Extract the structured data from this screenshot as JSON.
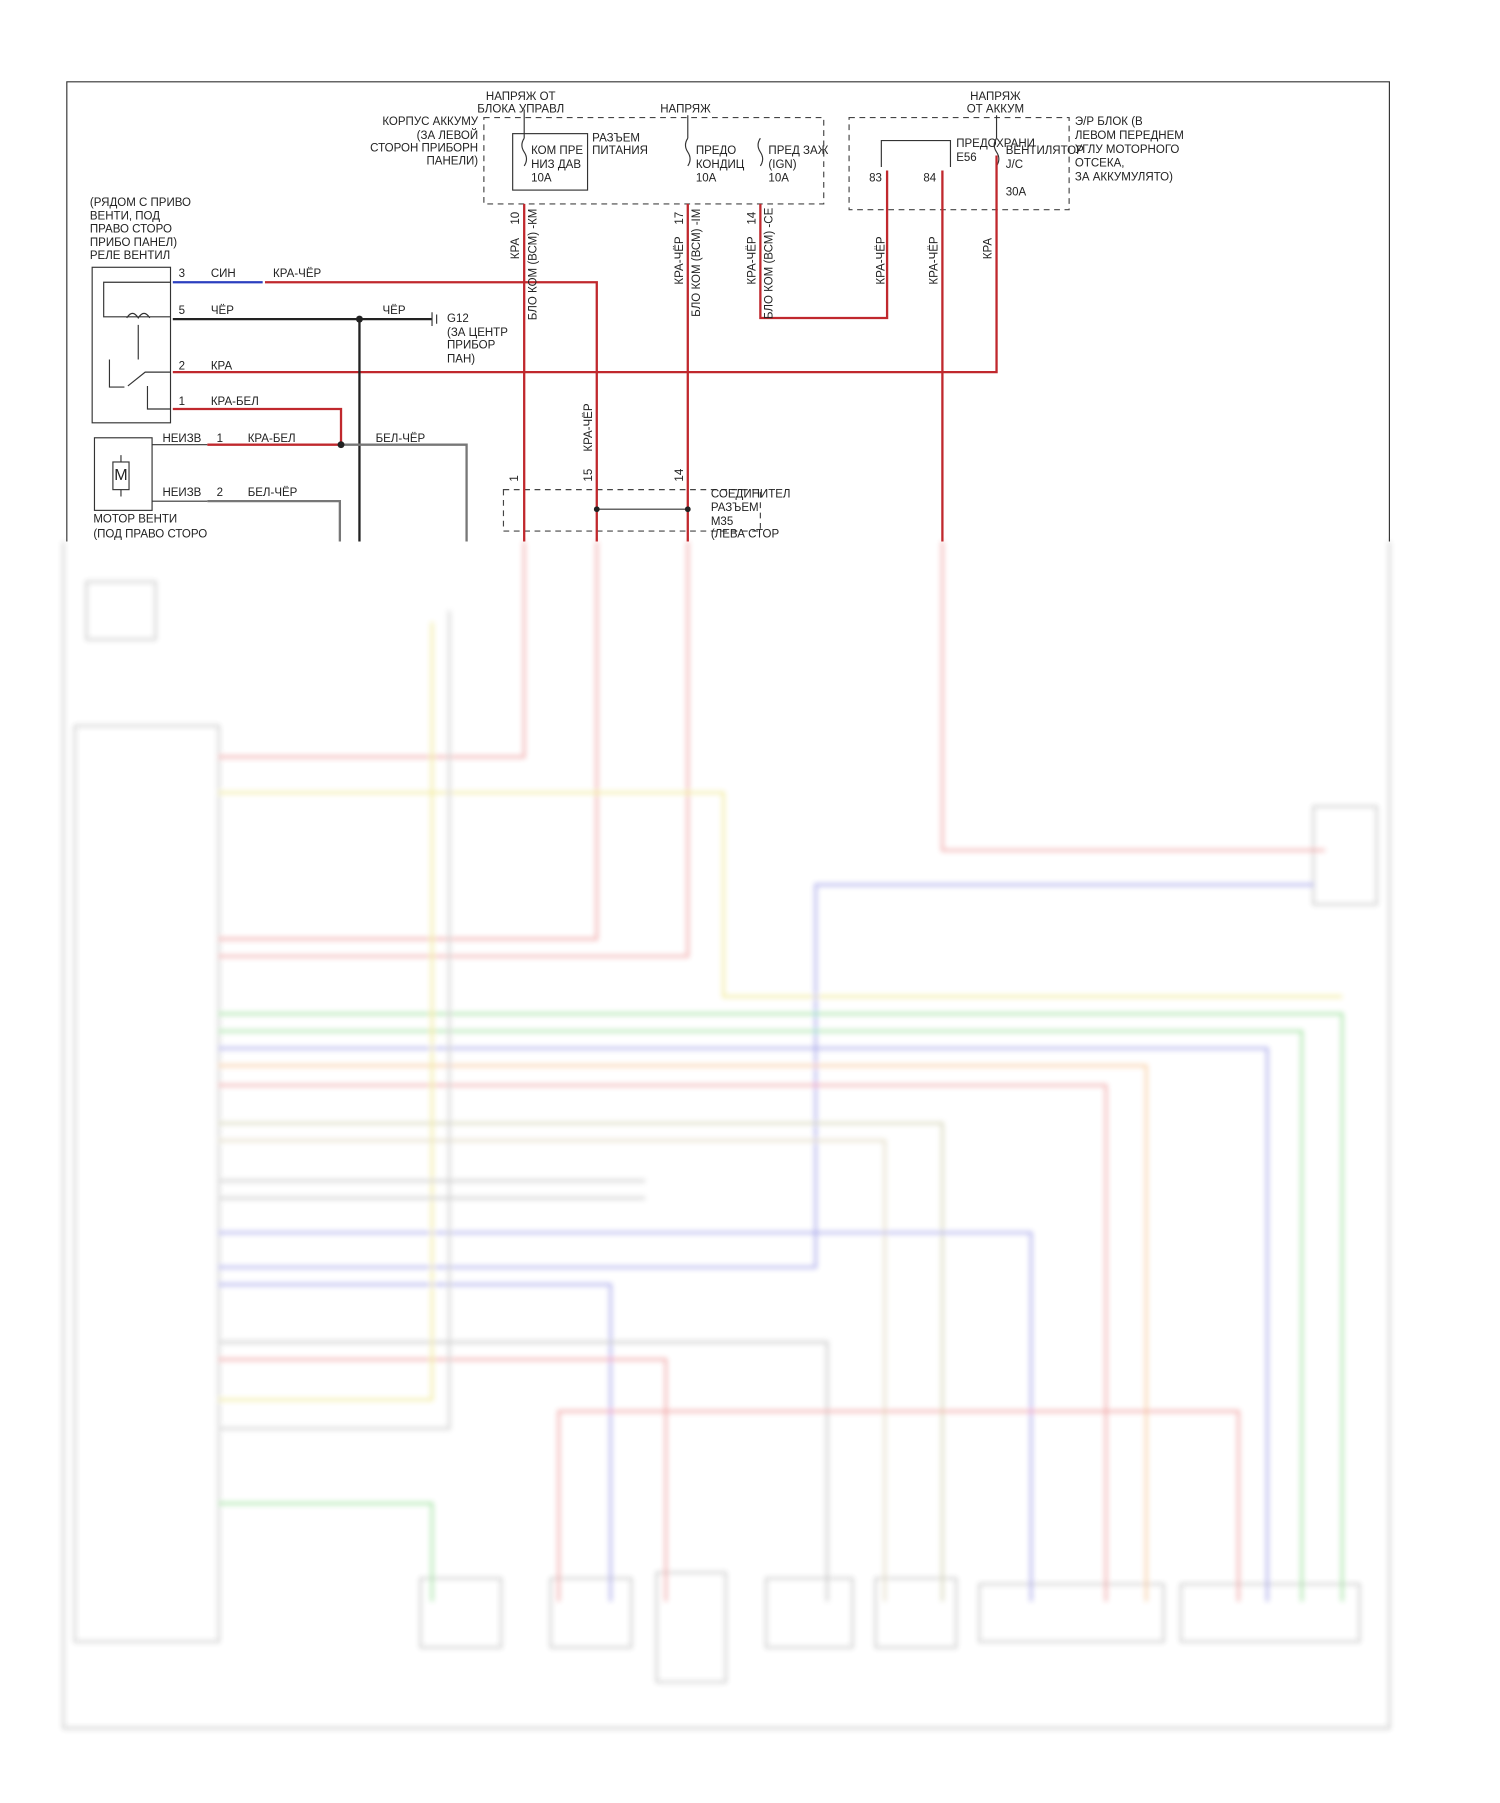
{
  "labels": [
    "НАПРЯЖ ОТ",
    "БЛОКА УПРАВЛ",
    "НАПРЯЖ",
    "НАПРЯЖ",
    "ОТ АККУМ",
    "КОРПУС АККУМУ",
    "(ЗА ЛЕВОЙ",
    "СТОРОН ПРИБОРН",
    "ПАНЕЛИ)",
    "КОМ ПРЕ",
    "НИЗ ДАВ",
    "10A",
    "РАЗЪЕМ",
    "ПИТАНИЯ",
    "ПРЕДО",
    "КОНДИЦ",
    "10A",
    "ПРЕД ЗАЖ",
    "(IGN)",
    "10A",
    "ПРЕДОХРАНИ",
    "E56",
    "ВЕНТИЛЯТОР",
    "J/C",
    "30A",
    "Э/Р БЛОК (В",
    "ЛЕВОМ ПЕРЕДНЕМ",
    "УГЛУ МОТОРНОГО",
    "ОТСЕКА,",
    "ЗА АККУМУЛЯТО)",
    "83",
    "84",
    "(РЯДОМ С ПРИВО",
    "ВЕНТИ, ПОД",
    "ПРАВО СТОРО",
    "ПРИБО ПАНЕЛ)",
    "РЕЛЕ ВЕНТИЛ",
    "3",
    "СИН",
    "КРА-ЧЁР",
    "5",
    "ЧЁР",
    "ЧЁР",
    "G12",
    "(ЗА ЦЕНТР",
    "ПРИБОР",
    "ПАН)",
    "2",
    "КРА",
    "1",
    "КРА-БЕЛ",
    "НЕИЗВ",
    "1",
    "КРА-БЕЛ",
    "БЕЛ-ЧЁР",
    "M",
    "НЕИЗВ",
    "2",
    "БЕЛ-ЧЁР",
    "МОТОР ВЕНТИ",
    "(ПОД ПРАВО СТОРО",
    "СОЕДИНИТЕЛ",
    "РАЗЪЕМ",
    "M35",
    "(ЛЕВА СТОР",
    "10",
    "КРА",
    "БЛО КОМ (ВСМ) -КМ",
    "17",
    "КРА-ЧЁР",
    "БЛО КОМ (ВСМ) -IM",
    "14",
    "КРА-ЧЁР",
    "БЛО КОМ (ВСМ) -СЕ",
    "КРА-ЧЁР",
    "КРА-ЧЁР",
    "КРА",
    "КРА-ЧЁР",
    "1",
    "15",
    "14"
  ]
}
